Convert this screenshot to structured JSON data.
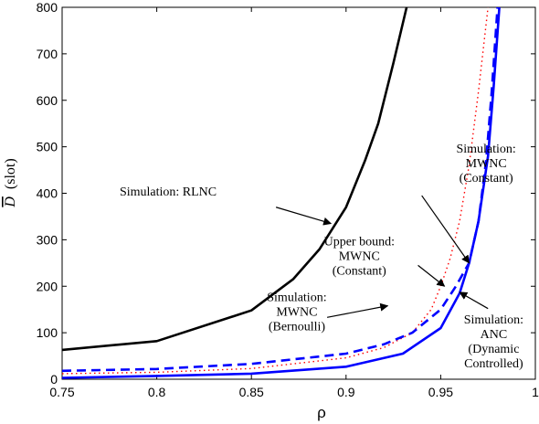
{
  "chart_data": {
    "type": "line",
    "xlabel": "ρ",
    "ylabel_symbol": "D",
    "ylabel_unit": "(slot)",
    "xlim": [
      0.75,
      1.0
    ],
    "ylim": [
      0,
      800
    ],
    "xticks": [
      "0.75",
      "0.8",
      "0.85",
      "0.9",
      "0.95",
      "1"
    ],
    "xtick_values": [
      0.75,
      0.8,
      0.85,
      0.9,
      0.95,
      1.0
    ],
    "yticks": [
      "0",
      "100",
      "200",
      "300",
      "400",
      "500",
      "600",
      "700",
      "800"
    ],
    "ytick_values": [
      0,
      100,
      200,
      300,
      400,
      500,
      600,
      700,
      800
    ],
    "grid": false,
    "series": [
      {
        "color": "#000000",
        "style": "solid",
        "x": [
          0.75,
          0.8,
          0.85,
          0.872,
          0.886,
          0.9,
          0.91,
          0.917,
          0.925,
          0.932
        ],
        "values": [
          63,
          82,
          148,
          215,
          280,
          370,
          470,
          550,
          680,
          800
        ]
      },
      {
        "color": "#ff0000",
        "style": "dotted",
        "x": [
          0.75,
          0.8,
          0.85,
          0.9,
          0.92,
          0.935,
          0.945,
          0.95,
          0.955,
          0.96,
          0.965,
          0.97,
          0.975
        ],
        "values": [
          12,
          15,
          23,
          46,
          68,
          100,
          150,
          200,
          260,
          340,
          460,
          620,
          800
        ]
      },
      {
        "color": "#0000ff",
        "style": "dashed",
        "x": [
          0.75,
          0.8,
          0.85,
          0.9,
          0.92,
          0.935,
          0.95,
          0.958,
          0.965,
          0.97,
          0.974,
          0.977,
          0.98
        ],
        "values": [
          18,
          22,
          33,
          55,
          75,
          100,
          150,
          200,
          250,
          340,
          470,
          620,
          800
        ]
      },
      {
        "color": "#0000ff",
        "style": "solid",
        "x": [
          0.75,
          0.8,
          0.85,
          0.9,
          0.93,
          0.95,
          0.96,
          0.965,
          0.97,
          0.975,
          0.978,
          0.981
        ],
        "values": [
          3,
          7,
          12,
          27,
          55,
          110,
          185,
          250,
          340,
          480,
          630,
          800
        ]
      }
    ],
    "annotations": [
      {
        "lines": [
          "Simulation: RLNC"
        ],
        "text_x": 0.806,
        "text_y": 395,
        "arrow_from": [
          0.863,
          370
        ],
        "arrow_to": [
          0.892,
          335
        ]
      },
      {
        "lines": [
          "Simulation:",
          "MWNC",
          "(Constant)"
        ],
        "text_x": 0.974,
        "text_y": 487,
        "arrow_from": [
          0.94,
          395
        ],
        "arrow_to": [
          0.965,
          250
        ]
      },
      {
        "lines": [
          "Upper bound:",
          "MWNC",
          "(Constant)"
        ],
        "text_x": 0.907,
        "text_y": 288,
        "arrow_from": [
          0.938,
          245
        ],
        "arrow_to": [
          0.952,
          200
        ]
      },
      {
        "lines": [
          "Simulation:",
          "MWNC",
          "(Bernoulli)"
        ],
        "text_x": 0.874,
        "text_y": 168,
        "arrow_from": [
          0.89,
          133
        ],
        "arrow_to": [
          0.922,
          158
        ]
      },
      {
        "lines": [
          "Simulation:",
          "ANC",
          "(Dynamic",
          "Controlled)"
        ],
        "text_x": 0.978,
        "text_y": 120,
        "arrow_from": [
          0.975,
          152
        ],
        "arrow_to": [
          0.96,
          187
        ]
      }
    ]
  }
}
